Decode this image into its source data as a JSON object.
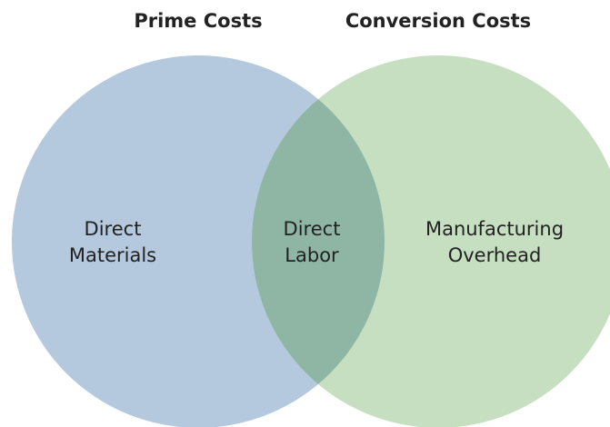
{
  "sets": [
    {
      "title": "Prime Costs",
      "lines": [
        "Direct",
        "Materials"
      ]
    },
    {
      "title": "Conversion Costs",
      "lines": [
        "Manufacturing",
        "Overhead"
      ]
    }
  ],
  "intersection": {
    "lines": [
      "Direct",
      "Labor"
    ]
  }
}
